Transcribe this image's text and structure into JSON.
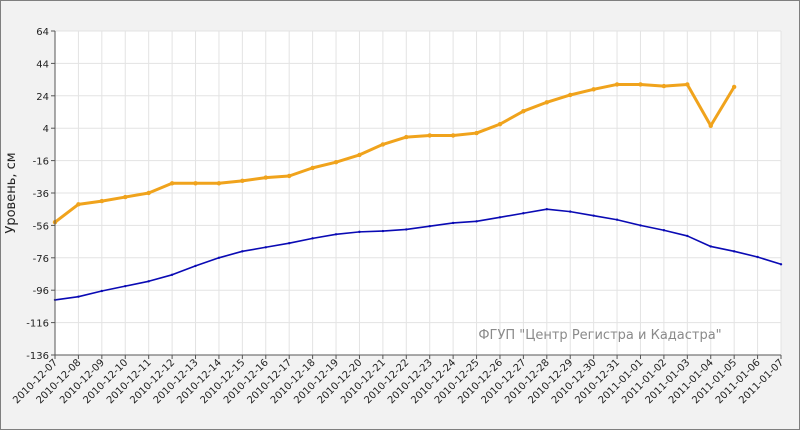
{
  "chart_data": {
    "type": "line",
    "y_label": "Уровень, см",
    "annotation": "ФГУП \"Центр Регистра и Кадастра\"",
    "categories": [
      "2010-12-07",
      "2010-12-08",
      "2010-12-09",
      "2010-12-10",
      "2010-12-11",
      "2010-12-12",
      "2010-12-13",
      "2010-12-14",
      "2010-12-15",
      "2010-12-16",
      "2010-12-17",
      "2010-12-18",
      "2010-12-19",
      "2010-12-20",
      "2010-12-21",
      "2010-12-22",
      "2010-12-23",
      "2010-12-24",
      "2010-12-25",
      "2010-12-26",
      "2010-12-27",
      "2010-12-28",
      "2010-12-29",
      "2010-12-30",
      "2010-12-31",
      "2011-01-01",
      "2011-01-02",
      "2011-01-03",
      "2011-01-04",
      "2011-01-05",
      "2011-01-06",
      "2011-01-07"
    ],
    "series": [
      {
        "color": "#f0a31c",
        "values": [
          -54,
          -43,
          -41,
          -38.5,
          -36,
          -30,
          -30,
          -30,
          -28.5,
          -26.5,
          -25.5,
          -20.5,
          -17,
          -12.5,
          -6,
          -1.5,
          -0.5,
          -0.5,
          1,
          6.5,
          14.5,
          20,
          24.5,
          28,
          31,
          31,
          30,
          31,
          5.5,
          29.5,
          null,
          null
        ]
      },
      {
        "color": "#0a0ab4",
        "values": [
          -102,
          -100,
          -96.5,
          -93.5,
          -90.5,
          -86.5,
          -81,
          -76,
          -72,
          -69.5,
          -67,
          -64,
          -61.5,
          -60,
          -59.5,
          -58.5,
          -56.5,
          -54.5,
          -53.5,
          -51,
          -48.5,
          -46,
          -47.5,
          -50,
          -52.5,
          -56,
          -59,
          -62.5,
          -69,
          -72,
          -75.5,
          -80
        ]
      }
    ],
    "ylim": [
      -136,
      64
    ],
    "yticks": [
      -136,
      -116,
      -96,
      -76,
      -56,
      -36,
      -16,
      4,
      24,
      44,
      64
    ],
    "grid": true
  }
}
